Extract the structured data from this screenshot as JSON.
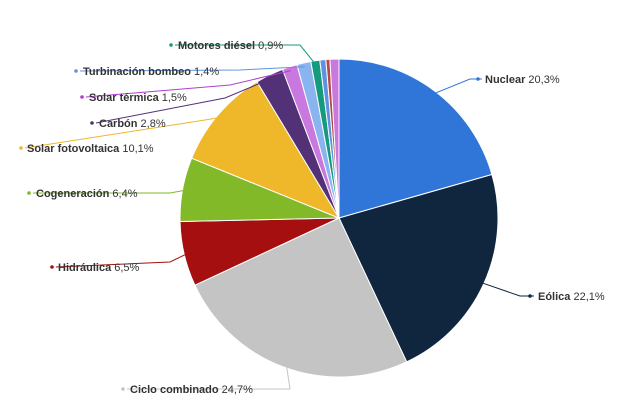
{
  "chart_data": {
    "type": "pie",
    "title": "",
    "start_angle_deg": 0,
    "slices": [
      {
        "label": "Nuclear",
        "value": 20.3,
        "display": "20,3%",
        "color": "#2f76d8",
        "leader_color": "#2f76d8"
      },
      {
        "label": "Eólica",
        "value": 22.1,
        "display": "22,1%",
        "color": "#10263f",
        "leader_color": "#10263f"
      },
      {
        "label": "Ciclo combinado",
        "value": 24.7,
        "display": "24,7%",
        "color": "#c4c4c4",
        "leader_color": "#c4c4c4"
      },
      {
        "label": "Hidráulica",
        "value": 6.5,
        "display": "6,5%",
        "color": "#a50f0f",
        "leader_color": "#a50f0f"
      },
      {
        "label": "Cogeneración",
        "value": 6.4,
        "display": "6,4%",
        "color": "#82b929",
        "leader_color": "#82b929"
      },
      {
        "label": "Solar fotovoltaica",
        "value": 10.1,
        "display": "10,1%",
        "color": "#efb72a",
        "leader_color": "#efb72a"
      },
      {
        "label": "Carbón",
        "value": 2.8,
        "display": "2,8%",
        "color": "#523177",
        "leader_color": "#523177"
      },
      {
        "label": "Solar térmica",
        "value": 1.5,
        "display": "1,5%",
        "color": "#c978e0",
        "leader_color": "#b03fd0"
      },
      {
        "label": "Turbinación bombeo",
        "value": 1.4,
        "display": "1,4%",
        "color": "#8ab4ef",
        "leader_color": "#5f93e0"
      },
      {
        "label": "Motores diésel",
        "value": 0.9,
        "display": "0,9%",
        "color": "#159a7d",
        "leader_color": "#159a7d"
      },
      {
        "label": "",
        "value": 0.6,
        "display": "",
        "color": "#5f93e0",
        "leader_color": "#5f93e0"
      },
      {
        "label": "",
        "value": 0.4,
        "display": "",
        "color": "#b84747",
        "leader_color": "#b84747"
      },
      {
        "label": "",
        "value": 0.9,
        "display": "",
        "color": "#c978e0",
        "leader_color": "#c978e0"
      }
    ]
  }
}
